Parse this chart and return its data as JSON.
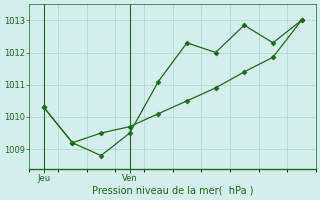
{
  "line1_x": [
    0,
    1,
    2,
    3,
    4,
    5,
    6,
    7,
    8,
    9
  ],
  "line1_y": [
    1010.3,
    1009.2,
    1008.8,
    1009.5,
    1011.1,
    1012.3,
    1012.0,
    1012.85,
    1012.3,
    1013.0
  ],
  "line2_x": [
    0,
    1,
    2,
    3,
    4,
    5,
    6,
    7,
    8,
    9
  ],
  "line2_y": [
    1010.3,
    1009.2,
    1009.5,
    1009.7,
    1010.1,
    1010.5,
    1010.9,
    1011.4,
    1011.85,
    1013.0
  ],
  "line_color": "#1a6b1a",
  "bg_color": "#d4eeed",
  "grid_color": "#b8d8d4",
  "ylabel_ticks": [
    1009,
    1010,
    1011,
    1012,
    1013
  ],
  "jeu_x": 0,
  "ven_x": 3,
  "day_labels": [
    "Jeu",
    "Ven"
  ],
  "xlabel": "Pression niveau de la mer(  hPa )",
  "ylim": [
    1008.4,
    1013.5
  ],
  "xlim": [
    -0.5,
    9.5
  ]
}
